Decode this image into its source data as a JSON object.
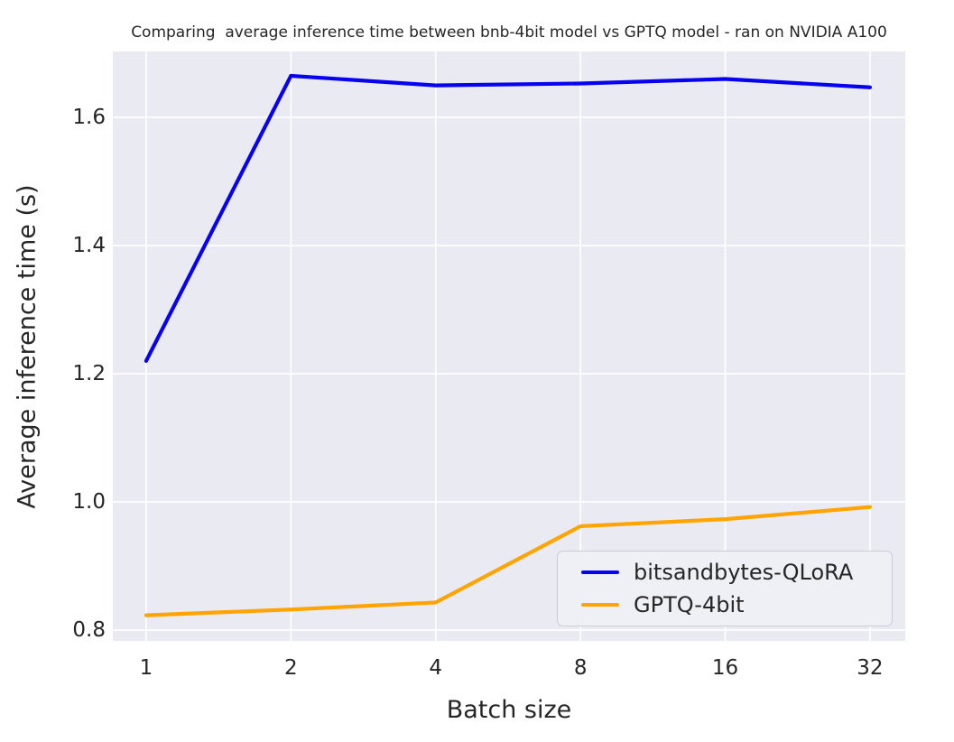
{
  "title": "Comparing  average inference time between bnb-4bit model vs GPTQ model - ran on NVIDIA A100",
  "chart_data": {
    "type": "line",
    "x": [
      1,
      2,
      4,
      8,
      16,
      32
    ],
    "x_scale": "log2-even-spacing",
    "series": [
      {
        "name": "bitsandbytes-QLoRA",
        "color": "#0703F0",
        "values": [
          1.22,
          1.665,
          1.65,
          1.653,
          1.66,
          1.647
        ]
      },
      {
        "name": "GPTQ-4bit",
        "color": "#FFA400",
        "values": [
          0.823,
          0.832,
          0.843,
          0.962,
          0.973,
          0.992
        ]
      }
    ],
    "xlabel": "Batch size",
    "ylabel": "Average inference time (s)",
    "yticks": [
      0.8,
      1.0,
      1.2,
      1.4,
      1.6
    ],
    "ylim": [
      0.783,
      1.703
    ],
    "grid": true,
    "grid_color": "#FFFFFF",
    "plot_background": "#EAEAF2",
    "text_color": "#262626",
    "legend_position": "lower right"
  }
}
